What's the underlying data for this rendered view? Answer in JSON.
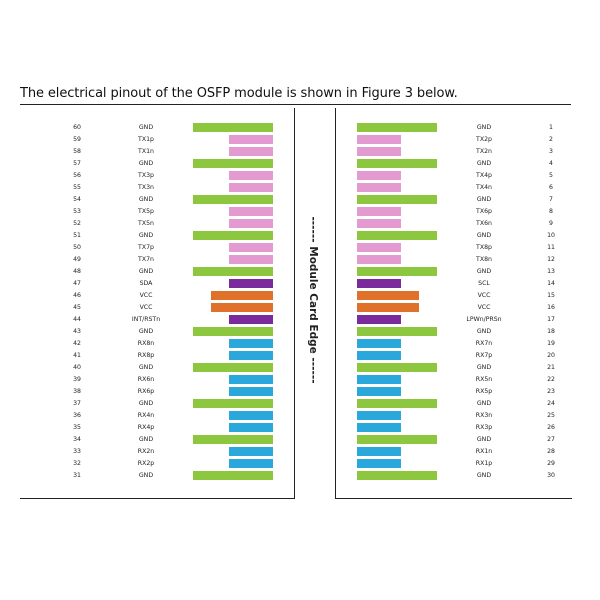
{
  "heading": "The electrical pinout of the OSFP module is shown in Figure 3 below.",
  "edge_label": "------ Module Card Edge ------",
  "colors": {
    "gnd": "#8dc63f",
    "tx": "#e29ad0",
    "rx": "#2aa8dc",
    "ctrl": "#7a2a9a",
    "vcc": "#e0712a"
  },
  "left_pins": [
    {
      "pin": "60",
      "signal": "GND",
      "type": "gnd"
    },
    {
      "pin": "59",
      "signal": "TX1p",
      "type": "tx"
    },
    {
      "pin": "58",
      "signal": "TX1n",
      "type": "tx"
    },
    {
      "pin": "57",
      "signal": "GND",
      "type": "gnd"
    },
    {
      "pin": "56",
      "signal": "TX3p",
      "type": "tx"
    },
    {
      "pin": "55",
      "signal": "TX3n",
      "type": "tx"
    },
    {
      "pin": "54",
      "signal": "GND",
      "type": "gnd"
    },
    {
      "pin": "53",
      "signal": "TX5p",
      "type": "tx"
    },
    {
      "pin": "52",
      "signal": "TX5n",
      "type": "tx"
    },
    {
      "pin": "51",
      "signal": "GND",
      "type": "gnd"
    },
    {
      "pin": "50",
      "signal": "TX7p",
      "type": "tx"
    },
    {
      "pin": "49",
      "signal": "TX7n",
      "type": "tx"
    },
    {
      "pin": "48",
      "signal": "GND",
      "type": "gnd"
    },
    {
      "pin": "47",
      "signal": "SDA",
      "type": "ctrl"
    },
    {
      "pin": "46",
      "signal": "VCC",
      "type": "vcc"
    },
    {
      "pin": "45",
      "signal": "VCC",
      "type": "vcc"
    },
    {
      "pin": "44",
      "signal": "INT/RSTn",
      "type": "ctrl"
    },
    {
      "pin": "43",
      "signal": "GND",
      "type": "gnd"
    },
    {
      "pin": "42",
      "signal": "RX8n",
      "type": "rx"
    },
    {
      "pin": "41",
      "signal": "RX8p",
      "type": "rx"
    },
    {
      "pin": "40",
      "signal": "GND",
      "type": "gnd"
    },
    {
      "pin": "39",
      "signal": "RX6n",
      "type": "rx"
    },
    {
      "pin": "38",
      "signal": "RX6p",
      "type": "rx"
    },
    {
      "pin": "37",
      "signal": "GND",
      "type": "gnd"
    },
    {
      "pin": "36",
      "signal": "RX4n",
      "type": "rx"
    },
    {
      "pin": "35",
      "signal": "RX4p",
      "type": "rx"
    },
    {
      "pin": "34",
      "signal": "GND",
      "type": "gnd"
    },
    {
      "pin": "33",
      "signal": "RX2n",
      "type": "rx"
    },
    {
      "pin": "32",
      "signal": "RX2p",
      "type": "rx"
    },
    {
      "pin": "31",
      "signal": "GND",
      "type": "gnd"
    }
  ],
  "right_pins": [
    {
      "pin": "1",
      "signal": "GND",
      "type": "gnd"
    },
    {
      "pin": "2",
      "signal": "TX2p",
      "type": "tx"
    },
    {
      "pin": "3",
      "signal": "TX2n",
      "type": "tx"
    },
    {
      "pin": "4",
      "signal": "GND",
      "type": "gnd"
    },
    {
      "pin": "5",
      "signal": "TX4p",
      "type": "tx"
    },
    {
      "pin": "6",
      "signal": "TX4n",
      "type": "tx"
    },
    {
      "pin": "7",
      "signal": "GND",
      "type": "gnd"
    },
    {
      "pin": "8",
      "signal": "TX6p",
      "type": "tx"
    },
    {
      "pin": "9",
      "signal": "TX6n",
      "type": "tx"
    },
    {
      "pin": "10",
      "signal": "GND",
      "type": "gnd"
    },
    {
      "pin": "11",
      "signal": "TX8p",
      "type": "tx"
    },
    {
      "pin": "12",
      "signal": "TX8n",
      "type": "tx"
    },
    {
      "pin": "13",
      "signal": "GND",
      "type": "gnd"
    },
    {
      "pin": "14",
      "signal": "SCL",
      "type": "ctrl"
    },
    {
      "pin": "15",
      "signal": "VCC",
      "type": "vcc"
    },
    {
      "pin": "16",
      "signal": "VCC",
      "type": "vcc"
    },
    {
      "pin": "17",
      "signal": "LPWn/PRSn",
      "type": "ctrl"
    },
    {
      "pin": "18",
      "signal": "GND",
      "type": "gnd"
    },
    {
      "pin": "19",
      "signal": "RX7n",
      "type": "rx"
    },
    {
      "pin": "20",
      "signal": "RX7p",
      "type": "rx"
    },
    {
      "pin": "21",
      "signal": "GND",
      "type": "gnd"
    },
    {
      "pin": "22",
      "signal": "RX5n",
      "type": "rx"
    },
    {
      "pin": "23",
      "signal": "RX5p",
      "type": "rx"
    },
    {
      "pin": "24",
      "signal": "GND",
      "type": "gnd"
    },
    {
      "pin": "25",
      "signal": "RX3n",
      "type": "rx"
    },
    {
      "pin": "26",
      "signal": "RX3p",
      "type": "rx"
    },
    {
      "pin": "27",
      "signal": "GND",
      "type": "gnd"
    },
    {
      "pin": "28",
      "signal": "RX1n",
      "type": "rx"
    },
    {
      "pin": "29",
      "signal": "RX1p",
      "type": "rx"
    },
    {
      "pin": "30",
      "signal": "GND",
      "type": "gnd"
    }
  ]
}
